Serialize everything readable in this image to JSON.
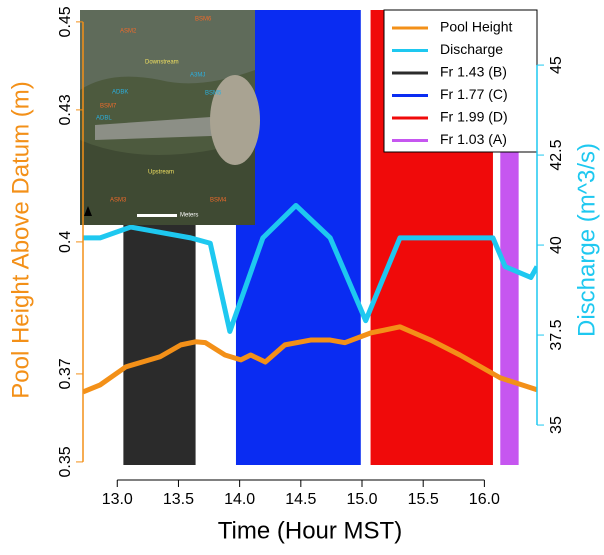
{
  "chart_data": {
    "type": "line",
    "xlabel": "Time (Hour MST)",
    "ylabel": "Pool Height Above Datum (m)",
    "y2label": "Discharge (m^3/s)",
    "xlim": [
      12.72,
      16.43
    ],
    "ylim": [
      0.3493,
      0.4527
    ],
    "y2lim": [
      33.89,
      46.53
    ],
    "xticks": [
      {
        "value": 13,
        "label": "13.0"
      },
      13.5,
      {
        "value": 14,
        "label": "14.0"
      },
      14.5,
      {
        "value": 15,
        "label": "15.0"
      },
      15.5,
      {
        "value": 16,
        "label": "16.0"
      }
    ],
    "yticks": [
      0.35,
      0.37,
      0.4,
      0.43,
      0.45
    ],
    "y2ticks": [
      35,
      37.5,
      40,
      42.5,
      45
    ],
    "y_color": "#f39018",
    "y2_color": "#1ec8f0",
    "bands": [
      {
        "name": "Fr 1.43 (B)",
        "color": "#2b2b2b",
        "start": 13.05,
        "end": 13.64
      },
      {
        "name": "Fr 1.77 (C)",
        "color": "#0a2cf2",
        "start": 13.97,
        "end": 14.99
      },
      {
        "name": "Fr 1.99 (D)",
        "color": "#f00a0a",
        "start": 15.07,
        "end": 16.07
      },
      {
        "name": "Fr 1.03 (A)",
        "color": "#c656f0",
        "start": 16.13,
        "end": 16.28
      }
    ],
    "series": [
      {
        "name": "Pool Height",
        "color": "#f39018",
        "x": [
          12.72,
          12.86,
          13.07,
          13.35,
          13.52,
          13.64,
          13.72,
          13.88,
          14.01,
          14.09,
          14.21,
          14.37,
          14.58,
          14.74,
          14.86,
          15.07,
          15.31,
          15.56,
          15.8,
          16.13,
          16.43
        ],
        "values": [
          0.3659,
          0.3675,
          0.3716,
          0.3739,
          0.3766,
          0.3773,
          0.3771,
          0.3743,
          0.3732,
          0.3743,
          0.3727,
          0.3766,
          0.3777,
          0.3777,
          0.3771,
          0.3793,
          0.3807,
          0.3777,
          0.3743,
          0.3691,
          0.3664
        ]
      },
      {
        "name": "Discharge",
        "color": "#1ec8f0",
        "axis": "y2",
        "x": [
          12.72,
          12.86,
          13.11,
          13.6,
          13.76,
          13.92,
          14.19,
          14.46,
          14.74,
          15.03,
          15.31,
          16.07,
          16.17,
          16.38,
          16.43
        ],
        "values": [
          40.2,
          40.2,
          40.5,
          40.2,
          40.05,
          37.6,
          40.2,
          41.1,
          40.2,
          37.9,
          40.2,
          40.2,
          39.4,
          39.1,
          39.4
        ]
      }
    ],
    "inset_labels": [
      "ASM2",
      "BSM6",
      "Downstream",
      "A3MJ",
      "BSM5",
      "ADBK",
      "BSM7",
      "ADBL",
      "Upstream",
      "BSM4",
      "ASM3",
      "Meters"
    ]
  }
}
